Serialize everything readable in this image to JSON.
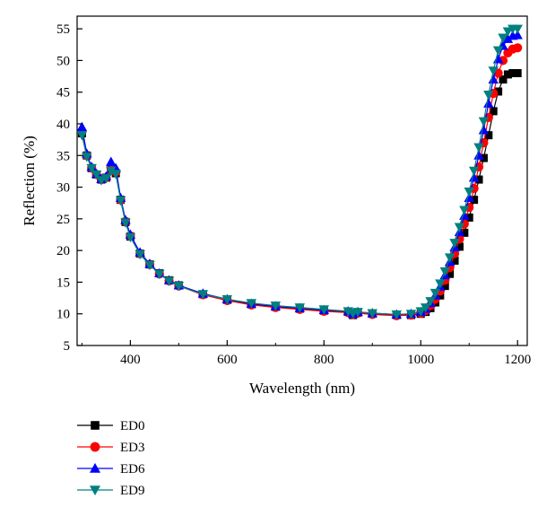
{
  "chart_data": {
    "type": "line",
    "title": "",
    "xlabel": "Wavelength (nm)",
    "ylabel": "Reflection (%)",
    "xlim": [
      290,
      1220
    ],
    "ylim": [
      5,
      57
    ],
    "xticks": [
      400,
      600,
      800,
      1000,
      1200
    ],
    "yticks": [
      5,
      10,
      15,
      20,
      25,
      30,
      35,
      40,
      45,
      50,
      55
    ],
    "grid": false,
    "legend_position": "below-left",
    "series": [
      {
        "name": "ED0",
        "color": "#000000",
        "marker": "square",
        "points": [
          [
            300,
            38.5
          ],
          [
            310,
            35
          ],
          [
            320,
            33
          ],
          [
            330,
            32
          ],
          [
            340,
            31.2
          ],
          [
            350,
            31.5
          ],
          [
            360,
            32.8
          ],
          [
            370,
            32.2
          ],
          [
            380,
            28
          ],
          [
            390,
            24.5
          ],
          [
            400,
            22.2
          ],
          [
            420,
            19.5
          ],
          [
            440,
            17.8
          ],
          [
            460,
            16.4
          ],
          [
            480,
            15.3
          ],
          [
            500,
            14.5
          ],
          [
            550,
            13.1
          ],
          [
            600,
            12.2
          ],
          [
            650,
            11.5
          ],
          [
            700,
            11.1
          ],
          [
            750,
            10.8
          ],
          [
            800,
            10.5
          ],
          [
            850,
            10.3
          ],
          [
            860,
            9.8
          ],
          [
            870,
            10.2
          ],
          [
            900,
            10
          ],
          [
            950,
            9.8
          ],
          [
            980,
            9.8
          ],
          [
            1000,
            10
          ],
          [
            1010,
            10.3
          ],
          [
            1020,
            10.9
          ],
          [
            1030,
            11.8
          ],
          [
            1040,
            12.9
          ],
          [
            1050,
            14.4
          ],
          [
            1060,
            16.3
          ],
          [
            1070,
            18.4
          ],
          [
            1080,
            20.6
          ],
          [
            1090,
            22.8
          ],
          [
            1100,
            25.2
          ],
          [
            1110,
            28
          ],
          [
            1120,
            31.2
          ],
          [
            1130,
            34.6
          ],
          [
            1140,
            38.2
          ],
          [
            1150,
            42
          ],
          [
            1160,
            45.1
          ],
          [
            1170,
            47
          ],
          [
            1180,
            47.8
          ],
          [
            1190,
            48
          ],
          [
            1200,
            48
          ]
        ]
      },
      {
        "name": "ED3",
        "color": "#ff0000",
        "marker": "circle",
        "points": [
          [
            300,
            38.8
          ],
          [
            310,
            35
          ],
          [
            320,
            33
          ],
          [
            330,
            32
          ],
          [
            340,
            31.2
          ],
          [
            350,
            31.5
          ],
          [
            360,
            33
          ],
          [
            370,
            32.4
          ],
          [
            380,
            28
          ],
          [
            390,
            24.6
          ],
          [
            400,
            22.3
          ],
          [
            420,
            19.5
          ],
          [
            440,
            17.8
          ],
          [
            460,
            16.3
          ],
          [
            480,
            15.2
          ],
          [
            500,
            14.4
          ],
          [
            550,
            13
          ],
          [
            600,
            12.1
          ],
          [
            650,
            11.4
          ],
          [
            700,
            11
          ],
          [
            750,
            10.7
          ],
          [
            800,
            10.4
          ],
          [
            850,
            10.2
          ],
          [
            860,
            9.9
          ],
          [
            870,
            10.1
          ],
          [
            900,
            9.9
          ],
          [
            950,
            9.7
          ],
          [
            980,
            9.8
          ],
          [
            1000,
            10.1
          ],
          [
            1010,
            10.5
          ],
          [
            1020,
            11.3
          ],
          [
            1030,
            12.3
          ],
          [
            1040,
            13.6
          ],
          [
            1050,
            15.3
          ],
          [
            1060,
            17.3
          ],
          [
            1070,
            19.5
          ],
          [
            1080,
            21.8
          ],
          [
            1090,
            24.2
          ],
          [
            1100,
            26.8
          ],
          [
            1110,
            29.8
          ],
          [
            1120,
            33.2
          ],
          [
            1130,
            37
          ],
          [
            1140,
            41
          ],
          [
            1150,
            44.8
          ],
          [
            1160,
            48
          ],
          [
            1170,
            50
          ],
          [
            1180,
            51.2
          ],
          [
            1190,
            51.8
          ],
          [
            1200,
            52
          ]
        ]
      },
      {
        "name": "ED6",
        "color": "#0000ff",
        "marker": "triangle-up",
        "points": [
          [
            300,
            39.5
          ],
          [
            310,
            35.3
          ],
          [
            320,
            33.2
          ],
          [
            330,
            32.1
          ],
          [
            340,
            31.3
          ],
          [
            350,
            31.7
          ],
          [
            360,
            34
          ],
          [
            370,
            33
          ],
          [
            380,
            28.3
          ],
          [
            390,
            24.8
          ],
          [
            400,
            22.5
          ],
          [
            420,
            19.7
          ],
          [
            440,
            17.9
          ],
          [
            460,
            16.4
          ],
          [
            480,
            15.3
          ],
          [
            500,
            14.5
          ],
          [
            550,
            13.2
          ],
          [
            600,
            12.3
          ],
          [
            650,
            11.6
          ],
          [
            700,
            11.2
          ],
          [
            750,
            10.9
          ],
          [
            800,
            10.6
          ],
          [
            850,
            10.4
          ],
          [
            860,
            10
          ],
          [
            870,
            10.3
          ],
          [
            900,
            10.1
          ],
          [
            950,
            9.9
          ],
          [
            980,
            10
          ],
          [
            1000,
            10.3
          ],
          [
            1010,
            10.8
          ],
          [
            1020,
            11.7
          ],
          [
            1030,
            12.9
          ],
          [
            1040,
            14.3
          ],
          [
            1050,
            16.1
          ],
          [
            1060,
            18.2
          ],
          [
            1070,
            20.5
          ],
          [
            1080,
            22.9
          ],
          [
            1090,
            25.5
          ],
          [
            1100,
            28.3
          ],
          [
            1110,
            31.5
          ],
          [
            1120,
            35
          ],
          [
            1130,
            39
          ],
          [
            1140,
            43.2
          ],
          [
            1150,
            47
          ],
          [
            1160,
            50.2
          ],
          [
            1170,
            52.3
          ],
          [
            1180,
            53.4
          ],
          [
            1190,
            53.9
          ],
          [
            1200,
            54
          ]
        ]
      },
      {
        "name": "ED9",
        "color": "#008080",
        "marker": "triangle-down",
        "points": [
          [
            300,
            38.2
          ],
          [
            310,
            34.8
          ],
          [
            320,
            33
          ],
          [
            330,
            32
          ],
          [
            340,
            31.1
          ],
          [
            350,
            31.4
          ],
          [
            360,
            32.6
          ],
          [
            370,
            32.1
          ],
          [
            380,
            27.9
          ],
          [
            390,
            24.4
          ],
          [
            400,
            22.1
          ],
          [
            420,
            19.4
          ],
          [
            440,
            17.7
          ],
          [
            460,
            16.3
          ],
          [
            480,
            15.2
          ],
          [
            500,
            14.4
          ],
          [
            550,
            13.1
          ],
          [
            600,
            12.3
          ],
          [
            650,
            11.7
          ],
          [
            700,
            11.3
          ],
          [
            750,
            11
          ],
          [
            800,
            10.7
          ],
          [
            850,
            10.4
          ],
          [
            860,
            10.1
          ],
          [
            870,
            10.3
          ],
          [
            900,
            10.1
          ],
          [
            950,
            9.9
          ],
          [
            980,
            10
          ],
          [
            1000,
            10.4
          ],
          [
            1010,
            11
          ],
          [
            1020,
            12
          ],
          [
            1030,
            13.3
          ],
          [
            1040,
            14.8
          ],
          [
            1050,
            16.7
          ],
          [
            1060,
            18.9
          ],
          [
            1070,
            21.2
          ],
          [
            1080,
            23.7
          ],
          [
            1090,
            26.4
          ],
          [
            1100,
            29.3
          ],
          [
            1110,
            32.6
          ],
          [
            1120,
            36.3
          ],
          [
            1130,
            40.4
          ],
          [
            1140,
            44.6
          ],
          [
            1150,
            48.4
          ],
          [
            1160,
            51.6
          ],
          [
            1170,
            53.6
          ],
          [
            1180,
            54.6
          ],
          [
            1190,
            55
          ],
          [
            1200,
            55
          ]
        ]
      }
    ]
  }
}
